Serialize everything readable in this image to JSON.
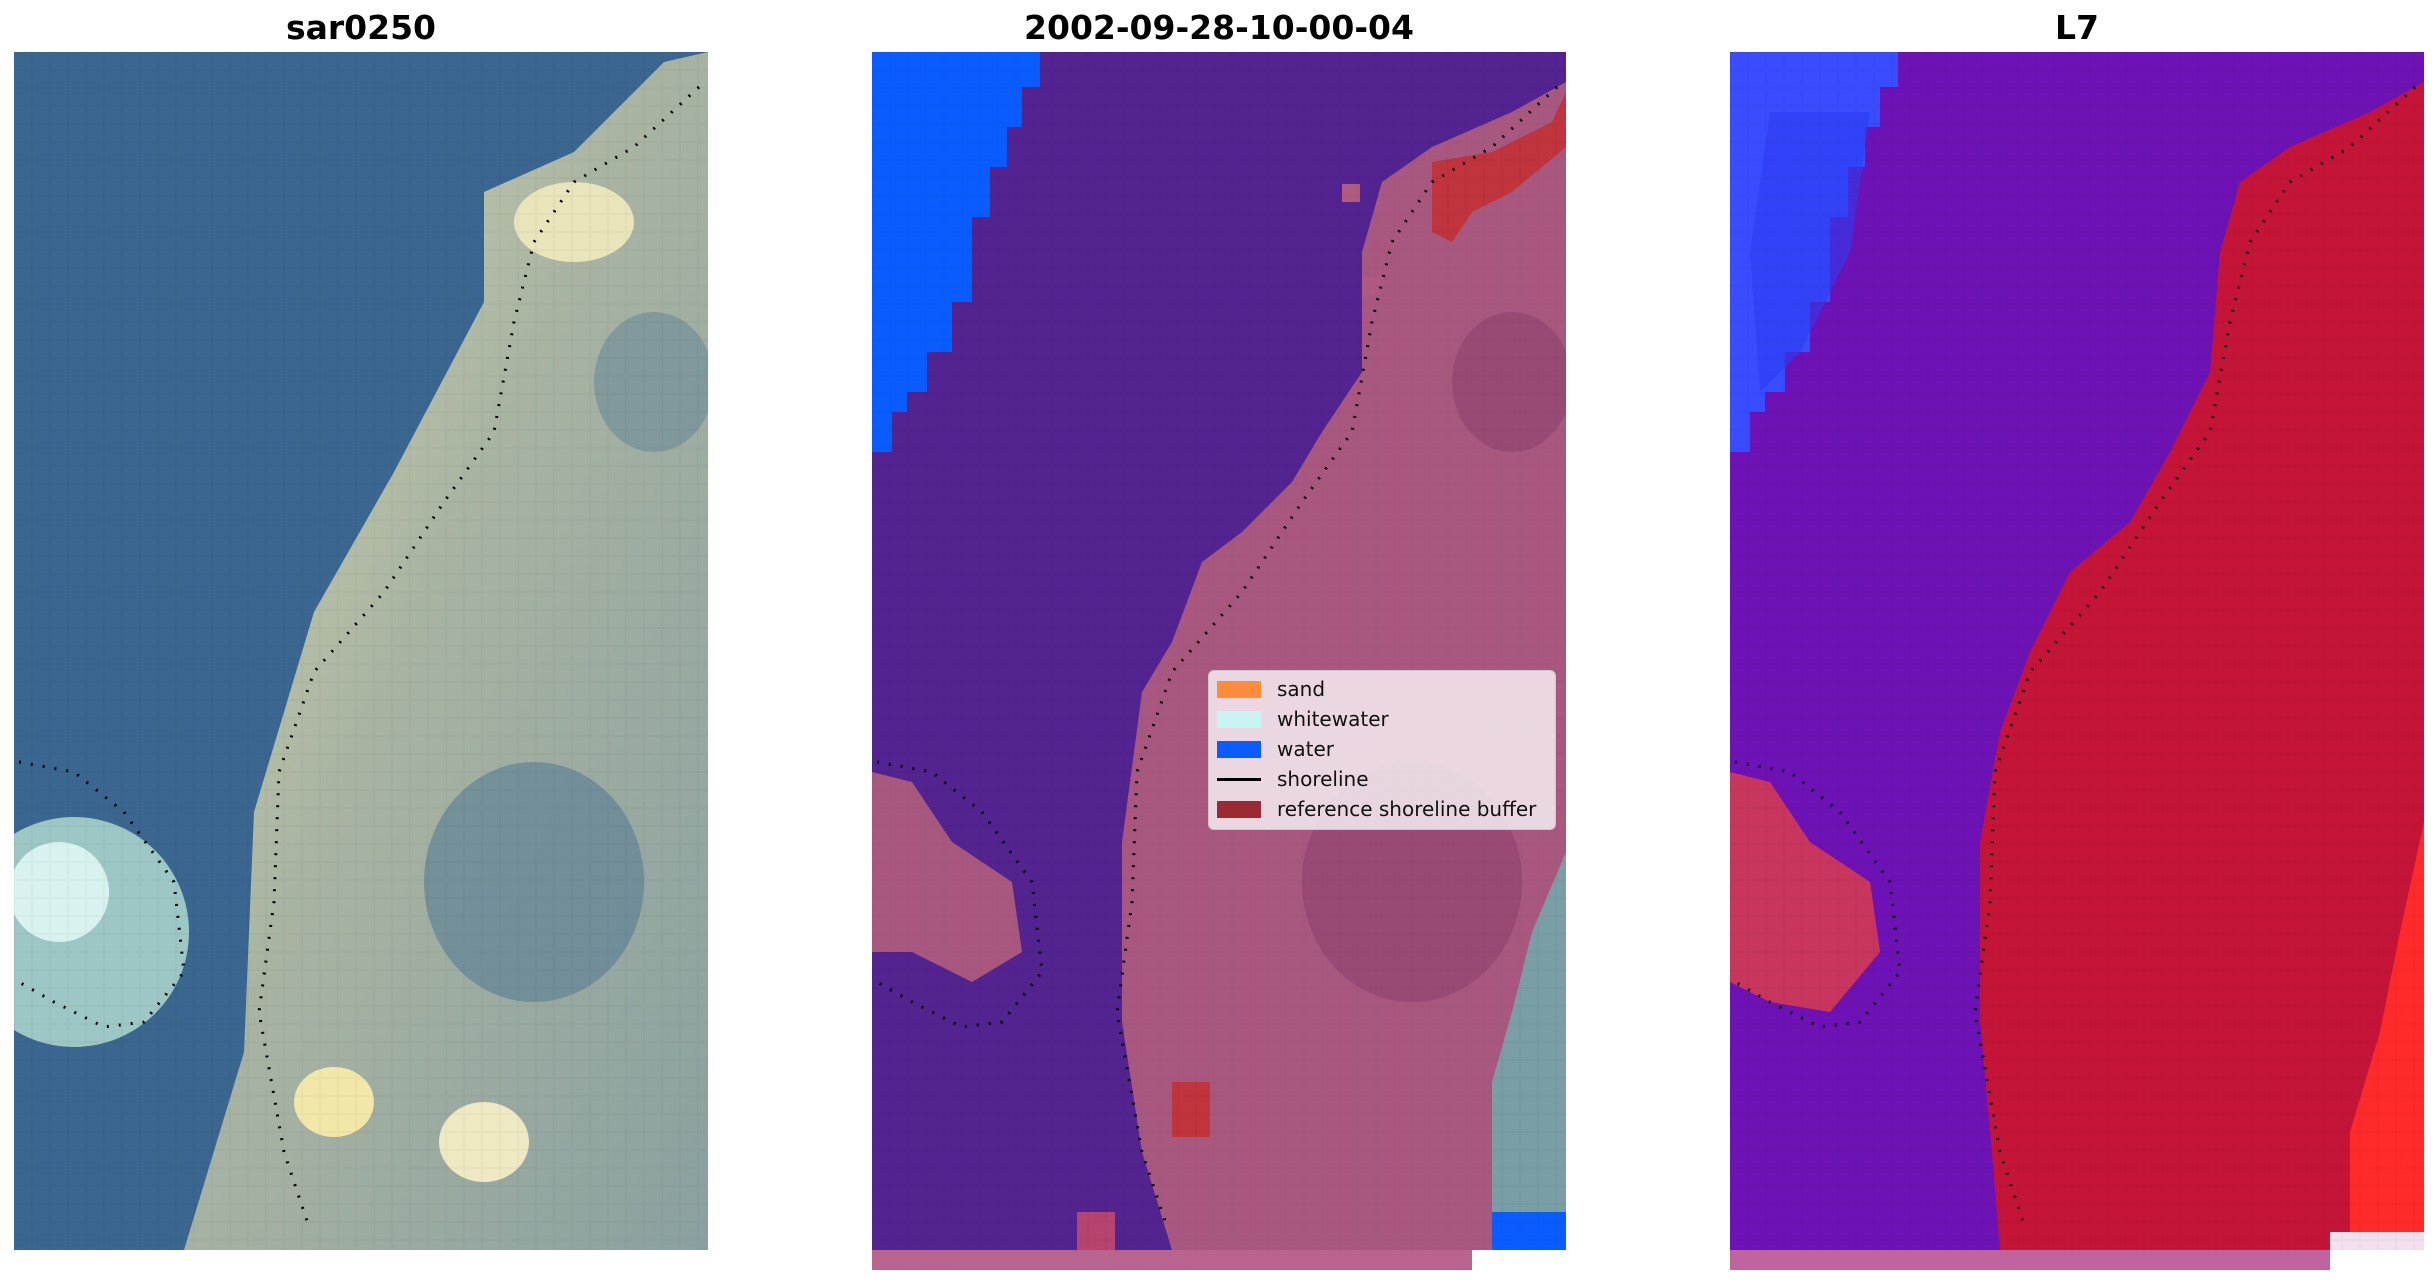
{
  "panels": [
    {
      "title": "sar0250"
    },
    {
      "title": "2002-09-28-10-00-04"
    },
    {
      "title": "L7"
    }
  ],
  "legend": {
    "items": [
      {
        "label": "sand",
        "color": "#ff8c3a",
        "kind": "patch"
      },
      {
        "label": "whitewater",
        "color": "#c8f4f4",
        "kind": "patch"
      },
      {
        "label": "water",
        "color": "#0a5cff",
        "kind": "patch"
      },
      {
        "label": "shoreline",
        "color": "#000000",
        "kind": "line"
      },
      {
        "label": "reference shoreline buffer",
        "color": "#9b2a33",
        "kind": "patch"
      }
    ]
  },
  "colors": {
    "rgb_water": "#3b6892",
    "rgb_land": "#9fae9f",
    "class_water_overlay": "#53238f",
    "class_land": "#a8587e",
    "class_water_blue": "#0a5cff",
    "buffer_red": "#c0343e",
    "l7_water": "#6d12b4",
    "l7_land": "#c41538",
    "l7_blue": "#3a4cff"
  }
}
